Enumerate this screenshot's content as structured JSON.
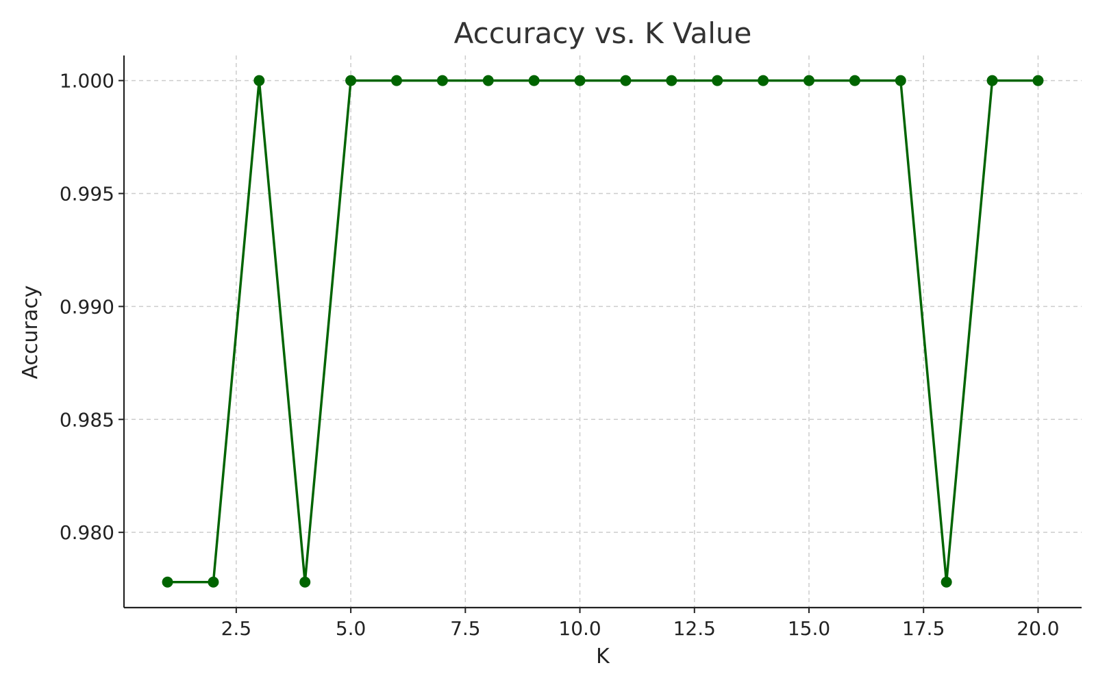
{
  "chart_data": {
    "type": "line",
    "title": "Accuracy vs. K Value",
    "xlabel": "K",
    "ylabel": "Accuracy",
    "x": [
      1,
      2,
      3,
      4,
      5,
      6,
      7,
      8,
      9,
      10,
      11,
      12,
      13,
      14,
      15,
      16,
      17,
      18,
      19,
      20
    ],
    "series": [
      {
        "values": [
          0.9778,
          0.9778,
          1.0,
          0.9778,
          1.0,
          1.0,
          1.0,
          1.0,
          1.0,
          1.0,
          1.0,
          1.0,
          1.0,
          1.0,
          1.0,
          1.0,
          1.0,
          0.9778,
          1.0,
          1.0
        ],
        "color": "#006400",
        "marker": "circle"
      }
    ],
    "xticks": [
      "2.5",
      "5.0",
      "7.5",
      "10.0",
      "12.5",
      "15.0",
      "17.5",
      "20.0"
    ],
    "yticks": [
      "0.980",
      "0.985",
      "0.990",
      "0.995",
      "1.000"
    ],
    "xlim": [
      0.05,
      20.95
    ],
    "ylim": [
      0.97667,
      1.00111
    ],
    "grid": true
  }
}
